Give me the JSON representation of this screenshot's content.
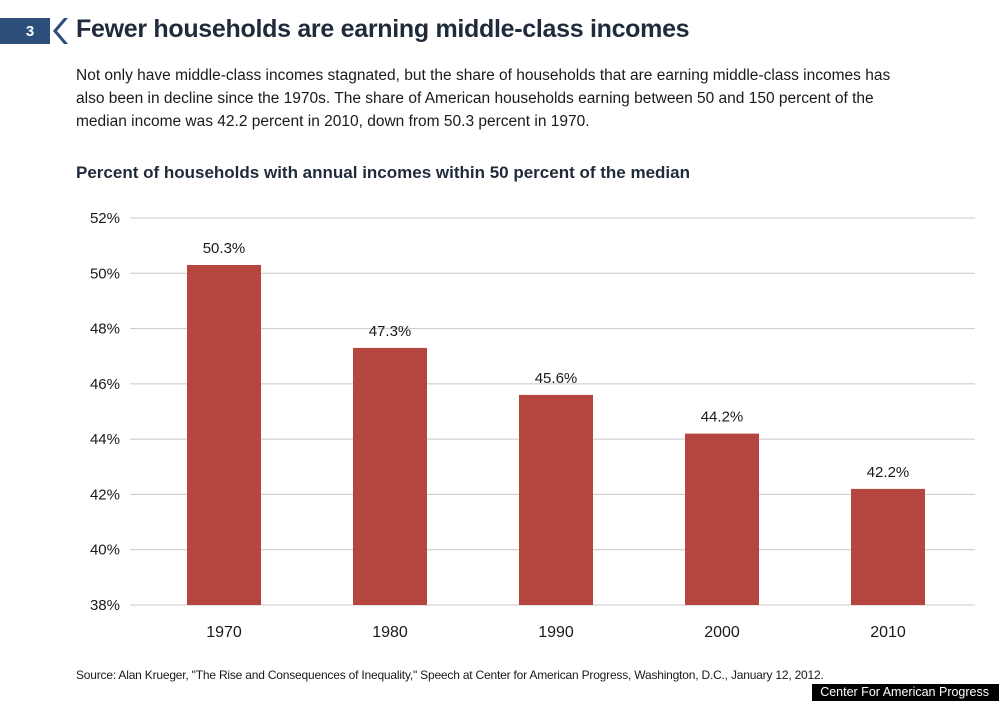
{
  "header": {
    "badge_number": "3",
    "title": "Fewer households are earning middle-class incomes",
    "description": "Not only have middle-class incomes stagnated, but the share of households that are earning middle-class incomes has also been in decline since the 1970s. The share of American households earning between 50 and 150 percent of the median income was 42.2 percent in 2010, down from 50.3 percent in 1970."
  },
  "chart_data": {
    "type": "bar",
    "title": "Percent of households with annual incomes within 50 percent of the median",
    "categories": [
      "1970",
      "1980",
      "1990",
      "2000",
      "2010"
    ],
    "values": [
      50.3,
      47.3,
      45.6,
      44.2,
      42.2
    ],
    "value_labels": [
      "50.3%",
      "47.3%",
      "45.6%",
      "44.2%",
      "42.2%"
    ],
    "ylim": [
      38,
      52
    ],
    "yticks": [
      38,
      40,
      42,
      44,
      46,
      48,
      50,
      52
    ],
    "ytick_labels": [
      "38%",
      "40%",
      "42%",
      "44%",
      "46%",
      "48%",
      "50%",
      "52%"
    ],
    "grid": true,
    "bar_color": "#b5463f"
  },
  "footer": {
    "source": "Source: Alan Krueger, \"The Rise and Consequences of Inequality,\" Speech at Center for American Progress, Washington, D.C., January 12, 2012.",
    "credit": "Center For American Progress"
  }
}
